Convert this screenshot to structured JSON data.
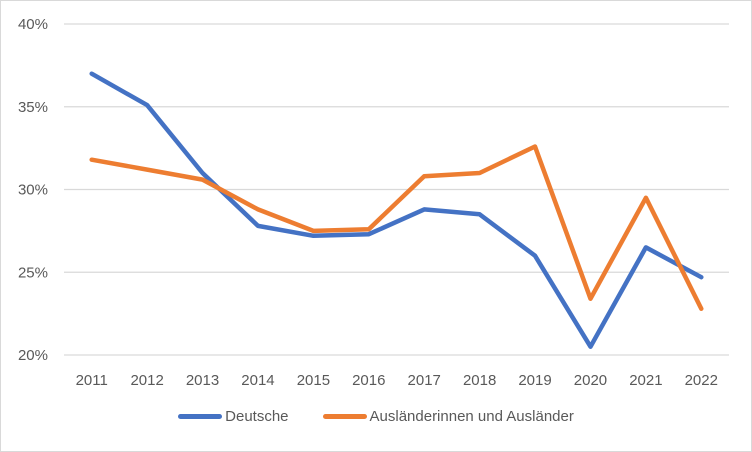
{
  "chart_data": {
    "type": "line",
    "title": "",
    "xlabel": "",
    "ylabel": "",
    "x": [
      "2011",
      "2012",
      "2013",
      "2014",
      "2015",
      "2016",
      "2017",
      "2018",
      "2019",
      "2020",
      "2021",
      "2022"
    ],
    "ylim": [
      0.2,
      0.4
    ],
    "yticks": [
      0.2,
      0.25,
      0.3,
      0.35,
      0.4
    ],
    "ytick_labels": [
      "20%",
      "25%",
      "30%",
      "35%",
      "40%"
    ],
    "grid": true,
    "legend_position": "bottom",
    "series": [
      {
        "name": "Deutsche",
        "color": "#4472c4",
        "values": [
          0.37,
          0.351,
          0.31,
          0.278,
          0.272,
          0.273,
          0.288,
          0.285,
          0.26,
          0.205,
          0.265,
          0.247
        ]
      },
      {
        "name": "Ausländerinnen und Ausländer",
        "color": "#ed7d31",
        "values": [
          0.318,
          0.312,
          0.306,
          0.288,
          0.275,
          0.276,
          0.308,
          0.31,
          0.326,
          0.234,
          0.295,
          0.228
        ]
      }
    ]
  }
}
